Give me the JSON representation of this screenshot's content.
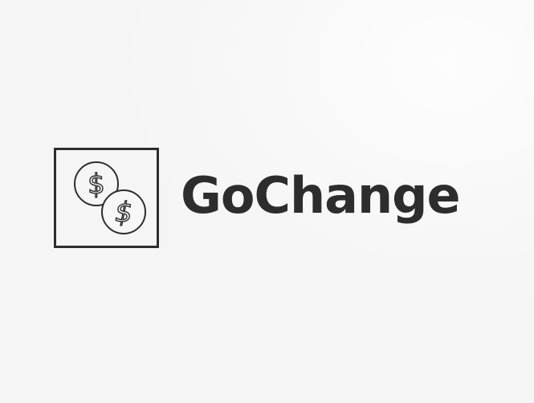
{
  "brand": {
    "name": "GoChange",
    "emblem_icon": "two-dollar-coins-icon",
    "ink_color": "#2d2d2d",
    "background_color": "#f6f6f6"
  }
}
